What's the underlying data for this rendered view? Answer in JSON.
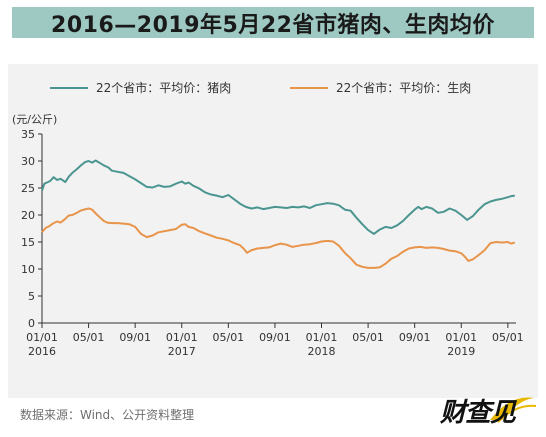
{
  "title": "2016—2019年5月22省市猪肉、生肉均价",
  "source": "数据来源：Wind、公开资料整理",
  "logo_text": "财查见",
  "chart_data": {
    "type": "line",
    "unit_label": "(元/公斤)",
    "ylim": [
      0,
      35
    ],
    "yticks": [
      0,
      5,
      10,
      15,
      20,
      25,
      30,
      35
    ],
    "legend_position": "top",
    "xlim_months": [
      0,
      40.7
    ],
    "xticks": [
      {
        "pos": 0,
        "line1": "01/01",
        "line2": "2016"
      },
      {
        "pos": 4,
        "line1": "05/01",
        "line2": ""
      },
      {
        "pos": 8,
        "line1": "09/01",
        "line2": ""
      },
      {
        "pos": 12,
        "line1": "01/01",
        "line2": "2017"
      },
      {
        "pos": 16,
        "line1": "05/01",
        "line2": ""
      },
      {
        "pos": 20,
        "line1": "09/01",
        "line2": ""
      },
      {
        "pos": 24,
        "line1": "01/01",
        "line2": "2018"
      },
      {
        "pos": 28,
        "line1": "05/01",
        "line2": ""
      },
      {
        "pos": 32,
        "line1": "09/01",
        "line2": ""
      },
      {
        "pos": 36,
        "line1": "01/01",
        "line2": "2019"
      },
      {
        "pos": 40,
        "line1": "05/01",
        "line2": ""
      }
    ],
    "series": [
      {
        "name": "22个省市：平均价：猪肉",
        "color": "#4a9590",
        "x": [
          0,
          0.2,
          0.4,
          0.7,
          1.0,
          1.3,
          1.6,
          2.0,
          2.3,
          2.6,
          3.0,
          3.4,
          3.7,
          4.0,
          4.3,
          4.6,
          5.0,
          5.3,
          5.7,
          6.0,
          6.5,
          7.0,
          7.5,
          8.0,
          8.5,
          9.0,
          9.5,
          10.0,
          10.5,
          11.0,
          11.5,
          12.0,
          12.3,
          12.6,
          13.0,
          13.5,
          14.0,
          14.5,
          15.0,
          15.5,
          16.0,
          16.5,
          17.0,
          17.5,
          18.0,
          18.5,
          19.0,
          19.5,
          20.0,
          20.5,
          21.0,
          21.5,
          22.0,
          22.5,
          23.0,
          23.5,
          24.0,
          24.5,
          25.0,
          25.5,
          26.0,
          26.5,
          27.0,
          27.5,
          28.0,
          28.5,
          29.0,
          29.5,
          30.0,
          30.5,
          31.0,
          31.5,
          32.0,
          32.3,
          32.6,
          33.0,
          33.5,
          34.0,
          34.5,
          35.0,
          35.5,
          36.0,
          36.5,
          37.0,
          37.5,
          38.0,
          38.5,
          39.0,
          39.5,
          40.0,
          40.3,
          40.6
        ],
        "y": [
          24.5,
          25.8,
          26.0,
          26.3,
          27.0,
          26.5,
          26.7,
          26.1,
          27.1,
          27.8,
          28.5,
          29.3,
          29.8,
          30.0,
          29.7,
          30.1,
          29.6,
          29.2,
          28.8,
          28.2,
          28.0,
          27.8,
          27.2,
          26.6,
          25.9,
          25.2,
          25.1,
          25.5,
          25.2,
          25.3,
          25.8,
          26.2,
          25.8,
          26.0,
          25.4,
          24.9,
          24.2,
          23.8,
          23.6,
          23.3,
          23.7,
          22.9,
          22.1,
          21.5,
          21.2,
          21.4,
          21.1,
          21.3,
          21.5,
          21.4,
          21.3,
          21.5,
          21.4,
          21.6,
          21.3,
          21.8,
          22.0,
          22.2,
          22.1,
          21.8,
          21.0,
          20.8,
          19.5,
          18.3,
          17.2,
          16.5,
          17.3,
          17.8,
          17.6,
          18.1,
          18.9,
          20.0,
          21.0,
          21.5,
          21.1,
          21.5,
          21.2,
          20.4,
          20.6,
          21.2,
          20.8,
          20.0,
          19.1,
          19.8,
          21.0,
          22.0,
          22.5,
          22.8,
          23.0,
          23.3,
          23.5,
          23.6
        ]
      },
      {
        "name": "22个省市：平均价：生肉",
        "color": "#e8944a",
        "x": [
          0,
          0.3,
          0.6,
          1.0,
          1.3,
          1.6,
          2.0,
          2.3,
          2.6,
          3.0,
          3.3,
          3.6,
          4.0,
          4.3,
          4.6,
          5.0,
          5.3,
          5.6,
          6.0,
          6.5,
          7.0,
          7.5,
          8.0,
          8.5,
          9.0,
          9.5,
          10.0,
          10.5,
          11.0,
          11.5,
          12.0,
          12.3,
          12.6,
          13.0,
          13.5,
          14.0,
          14.5,
          15.0,
          15.5,
          16.0,
          16.5,
          17.0,
          17.3,
          17.6,
          18.0,
          18.5,
          19.0,
          19.5,
          20.0,
          20.5,
          21.0,
          21.5,
          22.0,
          22.5,
          23.0,
          23.5,
          24.0,
          24.5,
          25.0,
          25.5,
          26.0,
          26.5,
          27.0,
          27.5,
          28.0,
          28.5,
          29.0,
          29.5,
          30.0,
          30.5,
          31.0,
          31.5,
          32.0,
          32.5,
          33.0,
          33.5,
          34.0,
          34.5,
          35.0,
          35.5,
          36.0,
          36.3,
          36.6,
          37.0,
          37.5,
          38.0,
          38.5,
          39.0,
          39.5,
          40.0,
          40.3,
          40.6
        ],
        "y": [
          16.8,
          17.6,
          17.9,
          18.5,
          18.8,
          18.6,
          19.3,
          19.9,
          20.0,
          20.4,
          20.8,
          21.0,
          21.2,
          21.0,
          20.3,
          19.5,
          18.9,
          18.6,
          18.5,
          18.5,
          18.4,
          18.3,
          17.8,
          16.5,
          15.9,
          16.2,
          16.8,
          17.0,
          17.2,
          17.4,
          18.2,
          18.3,
          17.8,
          17.6,
          17.0,
          16.6,
          16.2,
          15.8,
          15.6,
          15.3,
          14.8,
          14.4,
          13.8,
          13.0,
          13.5,
          13.8,
          13.9,
          14.0,
          14.4,
          14.7,
          14.5,
          14.1,
          14.3,
          14.5,
          14.6,
          14.8,
          15.1,
          15.2,
          15.1,
          14.3,
          13.0,
          12.0,
          10.8,
          10.4,
          10.2,
          10.2,
          10.3,
          11.0,
          11.9,
          12.4,
          13.2,
          13.8,
          14.0,
          14.1,
          13.9,
          14.0,
          13.9,
          13.7,
          13.4,
          13.3,
          12.9,
          12.3,
          11.5,
          11.8,
          12.6,
          13.5,
          14.8,
          15.0,
          14.9,
          15.0,
          14.7,
          14.9
        ]
      }
    ]
  }
}
